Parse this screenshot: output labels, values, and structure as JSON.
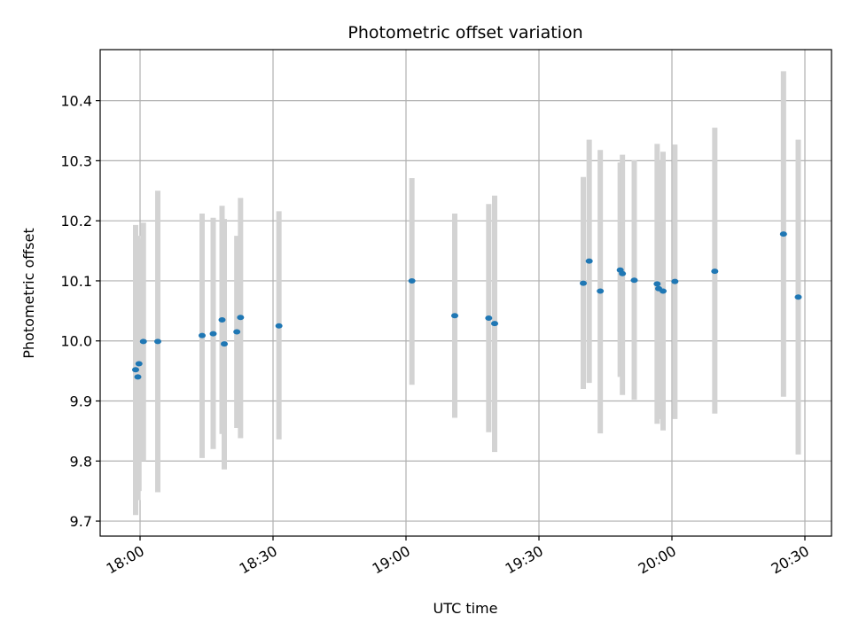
{
  "chart_data": {
    "type": "scatter",
    "title": "Photometric offset variation",
    "xlabel": "UTC time",
    "ylabel": "Photometric offset",
    "x_ticks": [
      "18:00",
      "18:30",
      "19:00",
      "19:30",
      "20:00",
      "20:30"
    ],
    "y_ticks": [
      "9.7",
      "9.8",
      "9.9",
      "10.0",
      "10.1",
      "10.2",
      "10.3",
      "10.4"
    ],
    "xlim": [
      "17:51",
      "20:36"
    ],
    "ylim": [
      9.675,
      10.485
    ],
    "grid": true,
    "marker_color": "#1f77b4",
    "errorbar_color": "#d3d3d3",
    "points": [
      {
        "t": "17:59:00",
        "y": 9.952,
        "lo": 9.71,
        "hi": 10.193
      },
      {
        "t": "17:59:30",
        "y": 9.94,
        "lo": 9.735,
        "hi": 10.175
      },
      {
        "t": "17:59:45",
        "y": 9.962,
        "lo": 9.75,
        "hi": 10.17
      },
      {
        "t": "18:00:45",
        "y": 9.999,
        "lo": 9.8,
        "hi": 10.197
      },
      {
        "t": "18:04:00",
        "y": 9.999,
        "lo": 9.748,
        "hi": 10.25
      },
      {
        "t": "18:14:00",
        "y": 10.009,
        "lo": 9.805,
        "hi": 10.212
      },
      {
        "t": "18:16:30",
        "y": 10.012,
        "lo": 9.82,
        "hi": 10.205
      },
      {
        "t": "18:18:30",
        "y": 10.035,
        "lo": 9.845,
        "hi": 10.225
      },
      {
        "t": "18:19:00",
        "y": 9.995,
        "lo": 9.786,
        "hi": 10.203
      },
      {
        "t": "18:21:50",
        "y": 10.015,
        "lo": 9.855,
        "hi": 10.175
      },
      {
        "t": "18:22:40",
        "y": 10.039,
        "lo": 9.838,
        "hi": 10.238
      },
      {
        "t": "18:31:20",
        "y": 10.025,
        "lo": 9.836,
        "hi": 10.216
      },
      {
        "t": "19:01:20",
        "y": 10.1,
        "lo": 9.927,
        "hi": 10.271
      },
      {
        "t": "19:11:00",
        "y": 10.042,
        "lo": 9.872,
        "hi": 10.212
      },
      {
        "t": "19:18:40",
        "y": 10.038,
        "lo": 9.848,
        "hi": 10.228
      },
      {
        "t": "19:20:00",
        "y": 10.029,
        "lo": 9.815,
        "hi": 10.242
      },
      {
        "t": "19:40:00",
        "y": 10.096,
        "lo": 9.92,
        "hi": 10.273
      },
      {
        "t": "19:41:20",
        "y": 10.133,
        "lo": 9.93,
        "hi": 10.335
      },
      {
        "t": "19:43:50",
        "y": 10.083,
        "lo": 9.846,
        "hi": 10.318
      },
      {
        "t": "19:48:20",
        "y": 10.118,
        "lo": 9.94,
        "hi": 10.297
      },
      {
        "t": "19:48:50",
        "y": 10.112,
        "lo": 9.91,
        "hi": 10.31
      },
      {
        "t": "19:51:30",
        "y": 10.101,
        "lo": 9.902,
        "hi": 10.301
      },
      {
        "t": "19:56:40",
        "y": 10.095,
        "lo": 9.862,
        "hi": 10.328
      },
      {
        "t": "19:57:00",
        "y": 10.087,
        "lo": 9.87,
        "hi": 10.3
      },
      {
        "t": "19:58:00",
        "y": 10.083,
        "lo": 9.851,
        "hi": 10.315
      },
      {
        "t": "20:00:40",
        "y": 10.099,
        "lo": 9.87,
        "hi": 10.327
      },
      {
        "t": "20:09:40",
        "y": 10.116,
        "lo": 9.879,
        "hi": 10.355
      },
      {
        "t": "20:25:10",
        "y": 10.178,
        "lo": 9.907,
        "hi": 10.449
      },
      {
        "t": "20:28:30",
        "y": 10.073,
        "lo": 9.811,
        "hi": 10.335
      }
    ]
  }
}
